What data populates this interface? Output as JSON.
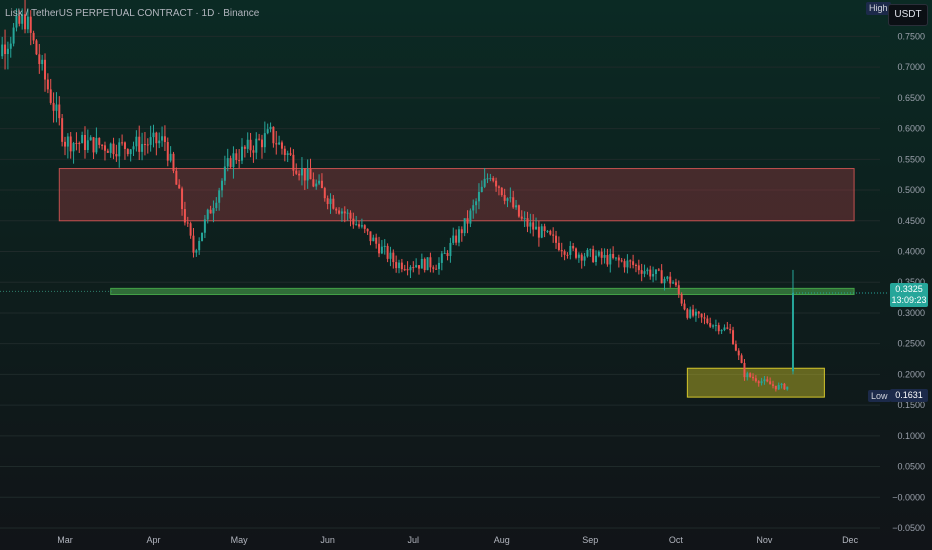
{
  "header": {
    "title": "Lisk / TetherUS PERPETUAL CONTRACT · 1D · Binance"
  },
  "currency": "USDT",
  "high_label": "High",
  "low_label": "Low",
  "low_value": "0.1631",
  "current_price": "0.3325",
  "countdown": "13:09:23",
  "colors": {
    "up": "#26a69a",
    "down": "#ef5350",
    "resistance_zone": "#8b2e3a",
    "support_line": "#2e7d32",
    "base_zone": "#a9a21f"
  },
  "chart_data": {
    "type": "candlestick",
    "title": "Lisk / TetherUS PERPETUAL CONTRACT · 1D · Binance",
    "y_axis": {
      "ticks": [
        "0.7500",
        "0.7000",
        "0.6500",
        "0.6000",
        "0.5500",
        "0.5000",
        "0.4500",
        "0.4000",
        "0.3500",
        "0.3000",
        "0.2500",
        "0.2000",
        "0.1500",
        "0.1000",
        "0.0500",
        "−0.0000",
        "−0.0500"
      ],
      "range": [
        -0.05,
        0.78
      ]
    },
    "x_axis": {
      "ticks": [
        "Mar",
        "Apr",
        "May",
        "Jun",
        "Jul",
        "Aug",
        "Sep",
        "Oct",
        "Nov",
        "Dec"
      ]
    },
    "zones": [
      {
        "name": "resistance",
        "start": "Feb 27",
        "end": "Dec",
        "low": 0.45,
        "high": 0.535
      },
      {
        "name": "support-line",
        "start": "Mar 17",
        "end": "Dec",
        "low": 0.33,
        "high": 0.34
      },
      {
        "name": "base",
        "start": "Oct 5",
        "end": "Nov 22",
        "low": 0.163,
        "high": 0.21
      }
    ],
    "key_points": [
      {
        "x": "Feb 1",
        "y": 0.7
      },
      {
        "x": "Feb 15",
        "y": 0.78
      },
      {
        "x": "Mar 1",
        "y": 0.58
      },
      {
        "x": "Mar 20",
        "y": 0.57
      },
      {
        "x": "Apr 5",
        "y": 0.58
      },
      {
        "x": "Apr 15",
        "y": 0.4
      },
      {
        "x": "Apr 28",
        "y": 0.55
      },
      {
        "x": "May 12",
        "y": 0.59
      },
      {
        "x": "May 25",
        "y": 0.52
      },
      {
        "x": "Jun 10",
        "y": 0.45
      },
      {
        "x": "Jun 25",
        "y": 0.38
      },
      {
        "x": "Jul 10",
        "y": 0.38
      },
      {
        "x": "Jul 20",
        "y": 0.45
      },
      {
        "x": "Jul 28",
        "y": 0.53
      },
      {
        "x": "Aug 8",
        "y": 0.45
      },
      {
        "x": "Aug 25",
        "y": 0.4
      },
      {
        "x": "Sep 15",
        "y": 0.38
      },
      {
        "x": "Sep 30",
        "y": 0.35
      },
      {
        "x": "Oct 5",
        "y": 0.3
      },
      {
        "x": "Oct 20",
        "y": 0.27
      },
      {
        "x": "Oct 25",
        "y": 0.2
      },
      {
        "x": "Nov 5",
        "y": 0.18
      },
      {
        "x": "Nov 10",
        "y": 0.18
      },
      {
        "x": "Nov 11",
        "y": 0.33
      }
    ],
    "last": {
      "high": 0.37,
      "close": 0.3325
    },
    "low": 0.1631
  }
}
